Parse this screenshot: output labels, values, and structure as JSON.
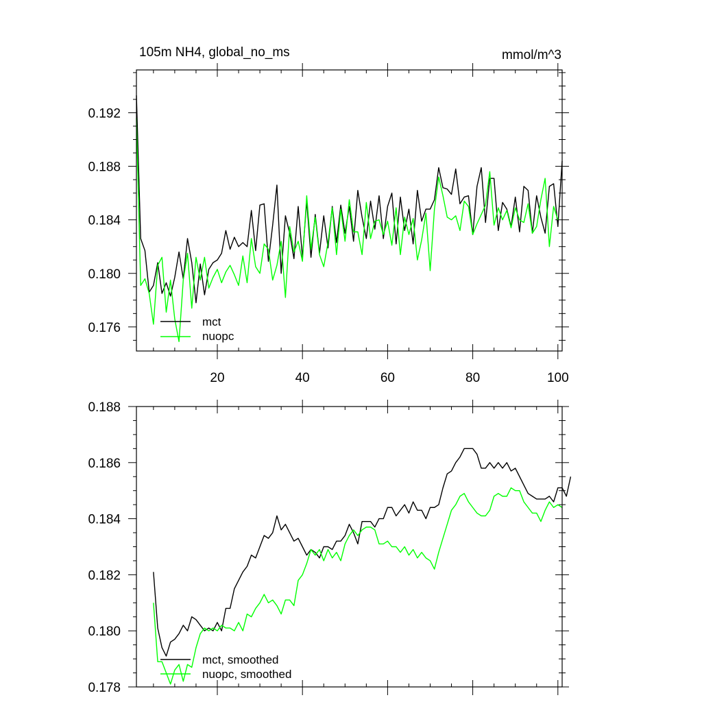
{
  "chart_data": [
    {
      "type": "line",
      "title": "105m NH4, global_no_ms",
      "units": "mmol/m^3",
      "xlabel": "",
      "ylabel": "",
      "xlim": [
        1,
        101
      ],
      "ylim": [
        0.1742,
        0.1952
      ],
      "x_ticks": [
        20,
        40,
        60,
        80,
        100
      ],
      "x_tick_labels": [
        "20",
        "40",
        "60",
        "80",
        "100"
      ],
      "y_ticks": [
        0.176,
        0.18,
        0.184,
        0.188,
        0.192
      ],
      "y_tick_labels": [
        "0.176",
        "0.180",
        "0.184",
        "0.188",
        "0.192"
      ],
      "legend_position": "bottom-left",
      "x_start": 1,
      "series": [
        {
          "name": "mct",
          "color": "#000000",
          "values": [
            0.1933,
            0.1826,
            0.1817,
            0.1786,
            0.1791,
            0.1808,
            0.1785,
            0.1793,
            0.1783,
            0.1797,
            0.1816,
            0.1796,
            0.1826,
            0.1808,
            0.1778,
            0.1807,
            0.1784,
            0.1803,
            0.1808,
            0.181,
            0.1815,
            0.1832,
            0.1818,
            0.1827,
            0.182,
            0.1823,
            0.182,
            0.1847,
            0.1817,
            0.1851,
            0.1852,
            0.1809,
            0.1836,
            0.1866,
            0.18,
            0.1843,
            0.183,
            0.1811,
            0.185,
            0.1812,
            0.1854,
            0.1812,
            0.1844,
            0.1815,
            0.1843,
            0.1819,
            0.185,
            0.1823,
            0.1851,
            0.183,
            0.185,
            0.1824,
            0.1862,
            0.1842,
            0.1826,
            0.1854,
            0.1833,
            0.1858,
            0.1826,
            0.185,
            0.186,
            0.1822,
            0.1857,
            0.1832,
            0.1848,
            0.1822,
            0.1862,
            0.1839,
            0.1848,
            0.1848,
            0.1855,
            0.1879,
            0.1864,
            0.1863,
            0.1859,
            0.1878,
            0.1852,
            0.1857,
            0.1858,
            0.1829,
            0.1865,
            0.1879,
            0.1838,
            0.1871,
            0.1871,
            0.1832,
            0.1853,
            0.1848,
            0.1835,
            0.1857,
            0.1831,
            0.1865,
            0.1862,
            0.183,
            0.1858,
            0.1842,
            0.183,
            0.1865,
            0.1867,
            0.1835,
            0.1884
          ]
        },
        {
          "name": "nuopc",
          "color": "#00ff00",
          "values": [
            0.1916,
            0.1791,
            0.1796,
            0.1785,
            0.1762,
            0.1806,
            0.1812,
            0.1771,
            0.1795,
            0.1766,
            0.1749,
            0.1795,
            0.1815,
            0.1774,
            0.1812,
            0.1795,
            0.1812,
            0.1789,
            0.1797,
            0.1803,
            0.1793,
            0.1801,
            0.1806,
            0.1799,
            0.1791,
            0.1813,
            0.1793,
            0.1826,
            0.1805,
            0.18,
            0.1822,
            0.1818,
            0.1795,
            0.1806,
            0.1824,
            0.1782,
            0.1835,
            0.1816,
            0.1824,
            0.1809,
            0.1858,
            0.1818,
            0.1842,
            0.1814,
            0.1805,
            0.1823,
            0.1849,
            0.1814,
            0.1848,
            0.1824,
            0.1855,
            0.1831,
            0.1831,
            0.1814,
            0.1853,
            0.1826,
            0.1839,
            0.184,
            0.1829,
            0.1839,
            0.1821,
            0.1849,
            0.1814,
            0.1842,
            0.1829,
            0.1841,
            0.181,
            0.1825,
            0.1845,
            0.1802,
            0.1848,
            0.1872,
            0.1858,
            0.1842,
            0.184,
            0.1843,
            0.1832,
            0.1854,
            0.185,
            0.1829,
            0.1837,
            0.1844,
            0.1851,
            0.1876,
            0.1836,
            0.1849,
            0.184,
            0.1847,
            0.1834,
            0.1849,
            0.184,
            0.1838,
            0.1852,
            0.183,
            0.1835,
            0.1855,
            0.1871,
            0.182,
            0.185,
            0.184
          ]
        }
      ]
    },
    {
      "type": "line",
      "title": "",
      "xlabel": "",
      "ylabel": "",
      "xlim": [
        1,
        101
      ],
      "ylim": [
        0.178,
        0.188
      ],
      "x_ticks": [
        20,
        40,
        60,
        80,
        100
      ],
      "y_ticks": [
        0.178,
        0.18,
        0.182,
        0.184,
        0.186,
        0.188
      ],
      "y_tick_labels": [
        "0.178",
        "0.180",
        "0.182",
        "0.184",
        "0.186",
        "0.188"
      ],
      "legend_position": "bottom-left",
      "x_start": 5,
      "series": [
        {
          "name": "mct, smoothed",
          "color": "#000000",
          "values": [
            0.1821,
            0.1801,
            0.1794,
            0.1791,
            0.1796,
            0.1797,
            0.1799,
            0.1802,
            0.18,
            0.1805,
            0.1804,
            0.1802,
            0.18,
            0.1801,
            0.18,
            0.1803,
            0.18,
            0.1808,
            0.1808,
            0.1815,
            0.1818,
            0.1821,
            0.1823,
            0.1827,
            0.1826,
            0.183,
            0.1834,
            0.1833,
            0.1835,
            0.1841,
            0.1836,
            0.1838,
            0.1835,
            0.1832,
            0.1833,
            0.183,
            0.1827,
            0.1829,
            0.1828,
            0.1826,
            0.183,
            0.183,
            0.1829,
            0.1832,
            0.1832,
            0.1834,
            0.1838,
            0.1835,
            0.1831,
            0.1839,
            0.1839,
            0.1839,
            0.1837,
            0.184,
            0.184,
            0.1844,
            0.1844,
            0.1841,
            0.1843,
            0.1845,
            0.1842,
            0.1846,
            0.1843,
            0.1843,
            0.184,
            0.1844,
            0.1844,
            0.1845,
            0.1851,
            0.1856,
            0.1857,
            0.186,
            0.1862,
            0.1865,
            0.1865,
            0.1865,
            0.1863,
            0.1858,
            0.1858,
            0.186,
            0.1858,
            0.186,
            0.1858,
            0.186,
            0.1857,
            0.1858,
            0.1855,
            0.1852,
            0.1849,
            0.1848,
            0.1847,
            0.1847,
            0.1847,
            0.1848,
            0.1846,
            0.1851,
            0.1851,
            0.1848,
            0.1855
          ]
        },
        {
          "name": "nuopc, smoothed",
          "color": "#00ff00",
          "values": [
            0.181,
            0.1789,
            0.1789,
            0.1785,
            0.1781,
            0.1786,
            0.1788,
            0.1782,
            0.1788,
            0.1787,
            0.1794,
            0.1799,
            0.1801,
            0.18,
            0.1801,
            0.18,
            0.1802,
            0.1801,
            0.1801,
            0.18,
            0.1803,
            0.18,
            0.1806,
            0.1805,
            0.1808,
            0.181,
            0.1813,
            0.181,
            0.1811,
            0.1809,
            0.1806,
            0.1811,
            0.1811,
            0.1809,
            0.1818,
            0.182,
            0.1824,
            0.1829,
            0.1827,
            0.1829,
            0.1825,
            0.1829,
            0.1826,
            0.1828,
            0.1825,
            0.1831,
            0.1834,
            0.1836,
            0.1834,
            0.1836,
            0.1837,
            0.1837,
            0.1836,
            0.1831,
            0.1831,
            0.1832,
            0.183,
            0.183,
            0.1828,
            0.183,
            0.1827,
            0.1829,
            0.1826,
            0.1828,
            0.1826,
            0.1825,
            0.1822,
            0.1828,
            0.1833,
            0.1838,
            0.1843,
            0.1845,
            0.1848,
            0.1849,
            0.1846,
            0.1844,
            0.1842,
            0.1841,
            0.1841,
            0.1843,
            0.1848,
            0.1849,
            0.1848,
            0.1848,
            0.1851,
            0.185,
            0.185,
            0.1846,
            0.1844,
            0.1842,
            0.1842,
            0.1839,
            0.1843,
            0.1846,
            0.1844,
            0.1845,
            0.1844
          ]
        }
      ]
    }
  ]
}
